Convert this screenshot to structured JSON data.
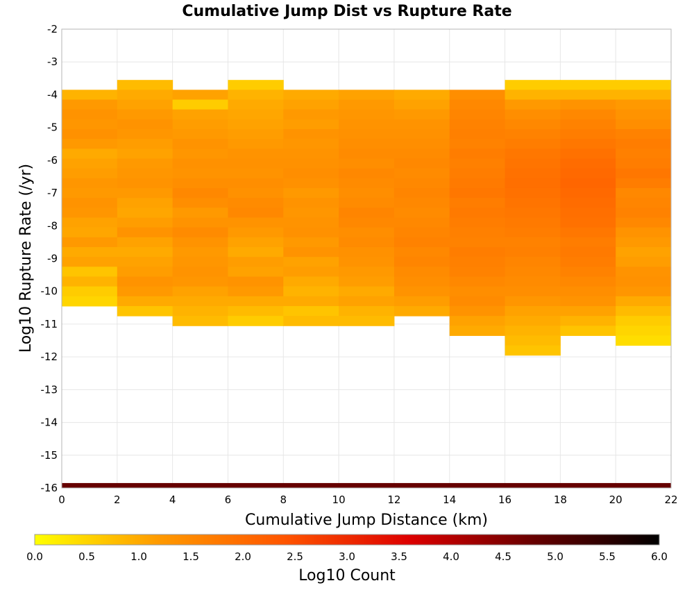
{
  "chart_data": {
    "type": "heatmap",
    "title": "Cumulative Jump Dist vs Rupture Rate",
    "xlabel": "Cumulative Jump Distance (km)",
    "ylabel": "Log10 Rupture Rate (/yr)",
    "xlim": [
      0,
      22
    ],
    "ylim": [
      -16,
      -2
    ],
    "x_ticks": [
      "0",
      "2",
      "4",
      "6",
      "8",
      "10",
      "12",
      "14",
      "16",
      "18",
      "20",
      "22"
    ],
    "y_ticks": [
      "-2",
      "-3",
      "-4",
      "-5",
      "-6",
      "-7",
      "-8",
      "-9",
      "-10",
      "-11",
      "-12",
      "-13",
      "-14",
      "-15",
      "-16"
    ],
    "grid": true,
    "x_bin_width": 2,
    "y_bin_height": 0.3,
    "colorbar": {
      "label": "Log10 Count",
      "min": 0.0,
      "max": 6.0,
      "ticks": [
        "0.0",
        "0.5",
        "1.0",
        "1.5",
        "2.0",
        "2.5",
        "3.0",
        "3.5",
        "4.0",
        "4.5",
        "5.0",
        "5.5",
        "6.0"
      ],
      "placement": "bottom",
      "colors": [
        "#ffff00",
        "#ff9900",
        "#ff5500",
        "#dd0000",
        "#660000",
        "#000000"
      ]
    },
    "columns": [
      {
        "x_start": 0,
        "y_top": -3.85,
        "y_bottom": -10.45,
        "values": [
          0.9,
          1.2,
          1.3,
          1.25,
          1.35,
          1.2,
          1.0,
          1.1,
          1.15,
          1.25,
          1.2,
          1.3,
          1.25,
          1.1,
          1.05,
          1.2,
          1.0,
          1.1,
          0.7,
          0.9,
          0.6,
          0.5
        ]
      },
      {
        "x_start": 2,
        "y_top": -3.55,
        "y_bottom": -10.75,
        "values": [
          0.8,
          1.0,
          1.1,
          1.2,
          1.3,
          1.25,
          1.15,
          1.1,
          1.2,
          1.25,
          1.3,
          1.2,
          1.1,
          1.05,
          1.15,
          1.3,
          1.1,
          1.0,
          1.1,
          1.15,
          1.3,
          1.2,
          1.0,
          0.7
        ]
      },
      {
        "x_start": 4,
        "y_top": -3.85,
        "y_bottom": -11.05,
        "values": [
          1.1,
          0.6,
          1.1,
          1.15,
          1.2,
          1.3,
          1.25,
          1.35,
          1.3,
          1.4,
          1.5,
          1.4,
          1.2,
          1.3,
          1.45,
          1.3,
          1.2,
          1.25,
          1.3,
          1.25,
          1.1,
          1.0,
          0.9,
          0.8
        ]
      },
      {
        "x_start": 6,
        "y_top": -3.55,
        "y_bottom": -11.05,
        "values": [
          0.6,
          0.9,
          1.0,
          1.05,
          1.1,
          1.15,
          1.2,
          1.3,
          1.35,
          1.3,
          1.4,
          1.35,
          1.45,
          1.5,
          1.3,
          1.2,
          1.1,
          1.0,
          1.15,
          1.1,
          1.3,
          1.2,
          1.0,
          0.8,
          0.6
        ]
      },
      {
        "x_start": 8,
        "y_top": -3.85,
        "y_bottom": -11.05,
        "values": [
          1.0,
          1.1,
          1.2,
          1.15,
          1.3,
          1.25,
          1.3,
          1.35,
          1.4,
          1.35,
          1.2,
          1.3,
          1.25,
          1.3,
          1.35,
          1.2,
          1.3,
          1.1,
          1.15,
          1.0,
          0.9,
          1.0,
          0.7,
          0.8
        ]
      },
      {
        "x_start": 10,
        "y_top": -3.85,
        "y_bottom": -11.05,
        "values": [
          1.1,
          1.2,
          1.25,
          1.3,
          1.35,
          1.4,
          1.45,
          1.4,
          1.5,
          1.45,
          1.4,
          1.45,
          1.55,
          1.5,
          1.4,
          1.45,
          1.35,
          1.3,
          1.2,
          1.15,
          1.0,
          1.1,
          0.9,
          0.8
        ]
      },
      {
        "x_start": 12,
        "y_top": -3.85,
        "y_bottom": -10.75,
        "values": [
          1.0,
          1.1,
          1.2,
          1.3,
          1.35,
          1.4,
          1.45,
          1.5,
          1.45,
          1.5,
          1.55,
          1.5,
          1.45,
          1.5,
          1.55,
          1.6,
          1.5,
          1.55,
          1.45,
          1.4,
          1.3,
          1.15,
          1.0
        ]
      },
      {
        "x_start": 14,
        "y_top": -3.85,
        "y_bottom": -11.35,
        "values": [
          1.4,
          1.5,
          1.55,
          1.6,
          1.65,
          1.6,
          1.7,
          1.65,
          1.7,
          1.75,
          1.8,
          1.7,
          1.75,
          1.7,
          1.65,
          1.6,
          1.7,
          1.65,
          1.6,
          1.5,
          1.4,
          1.45,
          1.3,
          1.1,
          1.0
        ]
      },
      {
        "x_start": 16,
        "y_top": -3.55,
        "y_bottom": -11.95,
        "values": [
          0.6,
          0.9,
          1.2,
          1.4,
          1.5,
          1.6,
          1.7,
          1.8,
          1.85,
          1.9,
          1.95,
          1.9,
          1.85,
          1.8,
          1.75,
          1.7,
          1.6,
          1.65,
          1.55,
          1.5,
          1.45,
          1.4,
          1.25,
          1.1,
          1.0,
          0.9,
          0.8,
          0.7
        ]
      },
      {
        "x_start": 18,
        "y_top": -3.55,
        "y_bottom": -11.35,
        "values": [
          0.6,
          0.9,
          1.3,
          1.5,
          1.6,
          1.7,
          1.8,
          1.9,
          2.0,
          2.05,
          2.1,
          2.05,
          2.0,
          1.95,
          1.9,
          1.8,
          1.7,
          1.75,
          1.7,
          1.6,
          1.5,
          1.4,
          1.3,
          1.1,
          0.9,
          0.7
        ]
      },
      {
        "x_start": 20,
        "y_top": -3.55,
        "y_bottom": -11.65,
        "values": [
          0.6,
          0.9,
          1.2,
          1.3,
          1.4,
          1.6,
          1.7,
          1.65,
          1.7,
          1.8,
          1.7,
          1.5,
          1.55,
          1.6,
          1.5,
          1.3,
          1.2,
          1.1,
          1.15,
          1.3,
          1.35,
          1.25,
          1.0,
          0.8,
          0.6,
          0.5,
          0.4
        ]
      }
    ],
    "bottom_band": {
      "y_top": -15.85,
      "y_bottom": -16.0,
      "value": 4.8
    }
  }
}
